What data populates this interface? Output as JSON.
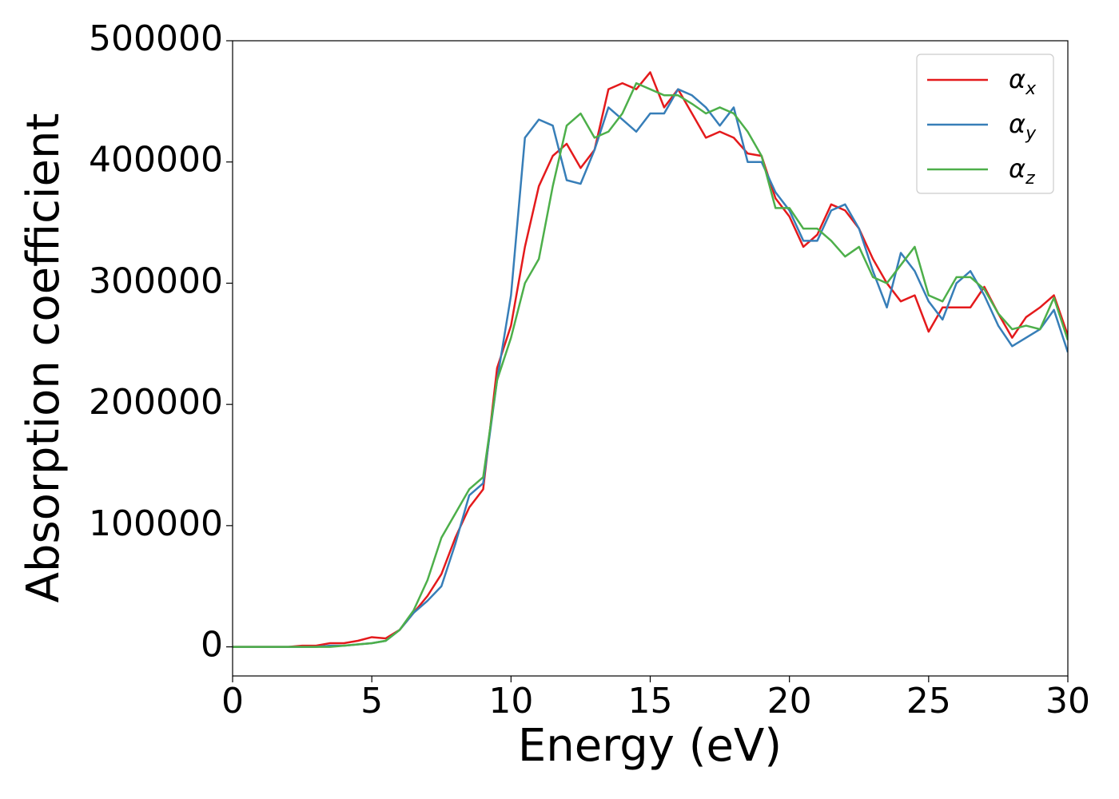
{
  "chart_data": {
    "type": "line",
    "xlabel": "Energy (eV)",
    "ylabel": "Absorption coefficient",
    "x": [
      0,
      0.5,
      1,
      1.5,
      2,
      2.5,
      3,
      3.5,
      4,
      4.5,
      5,
      5.5,
      6,
      6.5,
      7,
      7.5,
      8,
      8.5,
      9,
      9.5,
      10,
      10.5,
      11,
      11.5,
      12,
      12.5,
      13,
      13.5,
      14,
      14.5,
      15,
      15.5,
      16,
      16.5,
      17,
      17.5,
      18,
      18.5,
      19,
      19.5,
      20,
      20.5,
      21,
      21.5,
      22,
      22.5,
      23,
      23.5,
      24,
      24.5,
      25,
      25.5,
      26,
      26.5,
      27,
      27.5,
      28,
      28.5,
      29,
      29.5,
      30
    ],
    "series": [
      {
        "name": "αx",
        "color": "#e41a1c",
        "values": [
          0,
          0,
          0,
          0,
          0,
          1000,
          1000,
          3000,
          3000,
          5000,
          8000,
          7000,
          14000,
          28000,
          42000,
          60000,
          90000,
          115000,
          130000,
          230000,
          265000,
          330000,
          380000,
          405000,
          415000,
          395000,
          410000,
          460000,
          465000,
          460000,
          474000,
          445000,
          460000,
          440000,
          420000,
          425000,
          420000,
          407000,
          405000,
          370000,
          355000,
          330000,
          340000,
          365000,
          360000,
          345000,
          320000,
          300000,
          285000,
          290000,
          260000,
          280000,
          280000,
          280000,
          297000,
          275000,
          255000,
          272000,
          280000,
          290000,
          257000
        ]
      },
      {
        "name": "αy",
        "color": "#377eb8",
        "values": [
          0,
          0,
          0,
          0,
          0,
          0,
          0,
          1000,
          1000,
          2000,
          3000,
          5000,
          14000,
          28000,
          38000,
          50000,
          85000,
          125000,
          135000,
          220000,
          290000,
          420000,
          435000,
          430000,
          385000,
          382000,
          410000,
          445000,
          435000,
          425000,
          440000,
          440000,
          460000,
          455000,
          445000,
          430000,
          445000,
          400000,
          400000,
          375000,
          360000,
          335000,
          335000,
          360000,
          365000,
          345000,
          310000,
          280000,
          325000,
          310000,
          285000,
          270000,
          300000,
          310000,
          290000,
          265000,
          248000,
          255000,
          262000,
          278000,
          243000
        ]
      },
      {
        "name": "αz",
        "color": "#4daf4a",
        "values": [
          0,
          0,
          0,
          0,
          0,
          0,
          0,
          0,
          1000,
          2000,
          3000,
          5000,
          14000,
          30000,
          55000,
          90000,
          110000,
          130000,
          140000,
          220000,
          255000,
          300000,
          320000,
          380000,
          430000,
          440000,
          420000,
          425000,
          440000,
          465000,
          460000,
          455000,
          455000,
          448000,
          440000,
          445000,
          440000,
          425000,
          405000,
          362000,
          362000,
          345000,
          345000,
          335000,
          322000,
          330000,
          305000,
          300000,
          315000,
          330000,
          290000,
          285000,
          305000,
          305000,
          295000,
          275000,
          262000,
          265000,
          262000,
          288000,
          253000
        ]
      }
    ],
    "xlim": [
      0,
      30
    ],
    "xticks": [
      0,
      5,
      10,
      15,
      20,
      25,
      30
    ],
    "ylim": [
      -24000,
      500000
    ],
    "yticks": [
      0,
      100000,
      200000,
      300000,
      400000,
      500000
    ],
    "legend": "upper right",
    "grid": false
  }
}
